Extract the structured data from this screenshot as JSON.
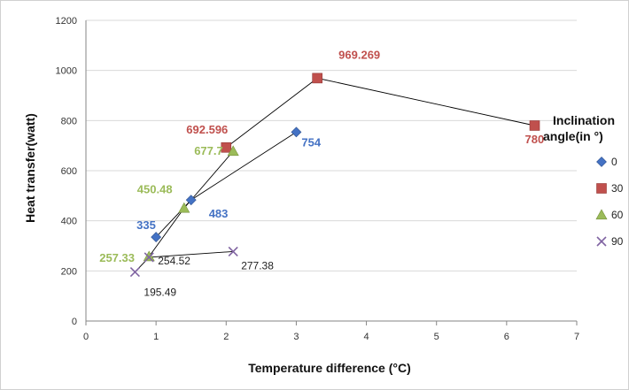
{
  "chart_data": {
    "type": "scatter",
    "title": "",
    "xlabel": "Temperature difference (°C)",
    "ylabel": "Heat transfer(watt)",
    "xlim": [
      0,
      7
    ],
    "ylim": [
      0,
      1200
    ],
    "xticks": [
      "0",
      "1",
      "2",
      "3",
      "4",
      "5",
      "6",
      "7"
    ],
    "yticks": [
      "0",
      "200",
      "400",
      "600",
      "800",
      "1000",
      "1200"
    ],
    "grid": "horizontal",
    "legend": {
      "title_line1": "Inclination",
      "title_line2": "angle(in °)",
      "placement": "right"
    },
    "series": [
      {
        "name": "0",
        "color": "#4472C4",
        "marker": "diamond",
        "points": [
          {
            "x": 1.0,
            "y": 335,
            "label": "335"
          },
          {
            "x": 1.5,
            "y": 483,
            "label": "483"
          },
          {
            "x": 3.0,
            "y": 754,
            "label": "754"
          }
        ]
      },
      {
        "name": "30",
        "color": "#C0504D",
        "marker": "square",
        "points": [
          {
            "x": 2.0,
            "y": 692.596,
            "label": "692.596"
          },
          {
            "x": 3.3,
            "y": 969.269,
            "label": "969.269"
          },
          {
            "x": 6.4,
            "y": 780,
            "label": "780"
          }
        ]
      },
      {
        "name": "60",
        "color": "#9BBB59",
        "marker": "triangle",
        "points": [
          {
            "x": 0.9,
            "y": 257.33,
            "label": "257.33"
          },
          {
            "x": 1.4,
            "y": 450.48,
            "label": "450.48"
          },
          {
            "x": 2.1,
            "y": 677.7,
            "label": "677.7"
          }
        ]
      },
      {
        "name": "90",
        "color": "#8064A2",
        "marker": "x",
        "points": [
          {
            "x": 0.7,
            "y": 195.49,
            "label": "195.49"
          },
          {
            "x": 0.9,
            "y": 254.52,
            "label": "254.52"
          },
          {
            "x": 2.1,
            "y": 277.38,
            "label": "277.38"
          }
        ]
      }
    ]
  }
}
